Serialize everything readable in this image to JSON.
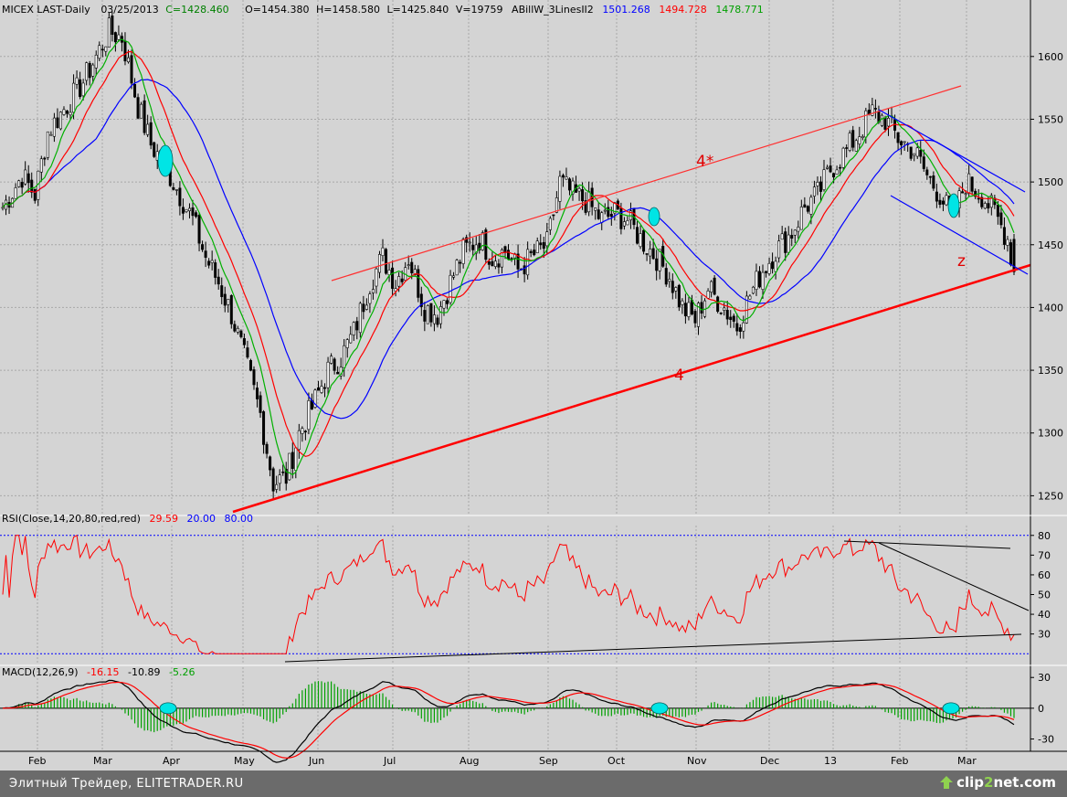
{
  "header": {
    "symbol": "MICEX LAST-Daily",
    "date": "03/25/2013",
    "close": "C=1428.460",
    "open": "O=1454.380",
    "high": "H=1458.580",
    "low": "L=1425.840",
    "volume": "V=19759",
    "indicator_name": "ABillW_3LinesII2",
    "ind_blue": "1501.268",
    "ind_red": "1494.728",
    "ind_green": "1478.771"
  },
  "rsi_header": {
    "label": "RSI(Close,14,20,80,red,red)",
    "value": "29.59",
    "lower": "20.00",
    "upper": "80.00"
  },
  "macd_header": {
    "label": "MACD(12,26,9)",
    "macd": "-16.15",
    "signal": "-10.89",
    "hist": "-5.26"
  },
  "annotations": {
    "upper_channel": "4*",
    "lower_trend": "4",
    "wave": "z"
  },
  "footer": {
    "caption": "Элитный Трейдер, ELITETRADER.RU",
    "logo_prefix": "clip",
    "logo_num": "2",
    "logo_suffix": "net.com"
  },
  "colors": {
    "background": "#d4d4d4",
    "grid": "#a8a8a8",
    "up_bar": "#ffffff",
    "down_bar": "#000000",
    "ma_blue": "#0000ff",
    "ma_red": "#ff0000",
    "ma_green": "#00b000",
    "rsi": "#ff0000",
    "macd": "#000000",
    "signal": "#ff0000",
    "hist": "#00a000",
    "marker": "#00e5e5"
  },
  "chart_data": [
    {
      "type": "candlestick",
      "title": "MICEX LAST-Daily",
      "x_months": [
        "Feb",
        "Mar",
        "Apr",
        "May",
        "Jun",
        "Jul",
        "Aug",
        "Sep",
        "Oct",
        "Nov",
        "Dec",
        "13",
        "Feb",
        "Mar"
      ],
      "y_ticks": [
        1250,
        1300,
        1350,
        1400,
        1450,
        1500,
        1550,
        1600
      ],
      "ylim": [
        1235,
        1645
      ],
      "close_anchors": [
        [
          0,
          1480
        ],
        [
          6,
          1505
        ],
        [
          10,
          1490
        ],
        [
          14,
          1540
        ],
        [
          19,
          1558
        ],
        [
          25,
          1580
        ],
        [
          29,
          1600
        ],
        [
          33,
          1620
        ],
        [
          37,
          1615
        ],
        [
          42,
          1560
        ],
        [
          46,
          1530
        ],
        [
          51,
          1510
        ],
        [
          55,
          1490
        ],
        [
          59,
          1470
        ],
        [
          63,
          1440
        ],
        [
          67,
          1420
        ],
        [
          71,
          1395
        ],
        [
          75,
          1360
        ],
        [
          80,
          1315
        ],
        [
          84,
          1260
        ],
        [
          88,
          1265
        ],
        [
          92,
          1300
        ],
        [
          96,
          1320
        ],
        [
          101,
          1350
        ],
        [
          105,
          1360
        ],
        [
          109,
          1380
        ],
        [
          114,
          1420
        ],
        [
          118,
          1440
        ],
        [
          122,
          1420
        ],
        [
          126,
          1440
        ],
        [
          131,
          1400
        ],
        [
          135,
          1395
        ],
        [
          139,
          1420
        ],
        [
          143,
          1445
        ],
        [
          148,
          1455
        ],
        [
          152,
          1440
        ],
        [
          156,
          1445
        ],
        [
          160,
          1430
        ],
        [
          164,
          1440
        ],
        [
          169,
          1450
        ],
        [
          173,
          1500
        ],
        [
          177,
          1490
        ],
        [
          181,
          1485
        ],
        [
          186,
          1470
        ],
        [
          190,
          1475
        ],
        [
          194,
          1470
        ],
        [
          198,
          1455
        ],
        [
          203,
          1440
        ],
        [
          207,
          1425
        ],
        [
          211,
          1400
        ],
        [
          215,
          1390
        ],
        [
          219,
          1415
        ],
        [
          224,
          1400
        ],
        [
          228,
          1385
        ],
        [
          232,
          1410
        ],
        [
          236,
          1430
        ],
        [
          240,
          1445
        ],
        [
          245,
          1460
        ],
        [
          249,
          1480
        ],
        [
          253,
          1490
        ],
        [
          257,
          1510
        ],
        [
          262,
          1525
        ],
        [
          266,
          1540
        ],
        [
          270,
          1555
        ],
        [
          274,
          1550
        ],
        [
          278,
          1535
        ],
        [
          283,
          1525
        ],
        [
          287,
          1505
        ],
        [
          291,
          1490
        ],
        [
          295,
          1470
        ],
        [
          299,
          1500
        ],
        [
          304,
          1490
        ],
        [
          308,
          1475
        ],
        [
          312,
          1455
        ],
        [
          314,
          1428
        ]
      ],
      "last": {
        "open": 1454.38,
        "high": 1458.58,
        "low": 1425.84,
        "close": 1428.46,
        "volume": 19759
      },
      "series": [
        {
          "name": "1501.268",
          "color": "#0000ff",
          "period": 30
        },
        {
          "name": "1494.728",
          "color": "#ff0000",
          "period": 15
        },
        {
          "name": "1478.771",
          "color": "#00b000",
          "period": 8
        }
      ]
    },
    {
      "type": "line",
      "title": "RSI(Close,14,20,80,red,red)",
      "y_ticks": [
        30,
        40,
        50,
        60,
        70,
        80
      ],
      "ylim": [
        15,
        85
      ],
      "levels": [
        20,
        80
      ],
      "last": 29.59
    },
    {
      "type": "line",
      "title": "MACD(12,26,9)",
      "y_ticks": [
        -30,
        0,
        30
      ],
      "ylim": [
        -42,
        40
      ],
      "series": [
        {
          "name": "-16.15",
          "color": "#000000"
        },
        {
          "name": "-10.89",
          "color": "#ff0000"
        },
        {
          "name": "-5.26",
          "color": "#00a000",
          "style": "histogram"
        }
      ]
    }
  ]
}
